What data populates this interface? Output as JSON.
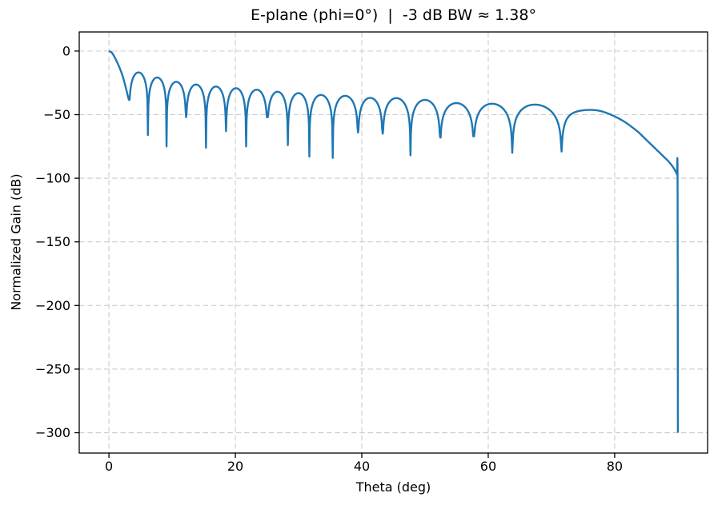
{
  "title": "E-plane (phi=0°)  |  -3 dB BW ≈ 1.38°",
  "axes": {
    "xlabel": "Theta (deg)",
    "ylabel": "Normalized Gain (dB)",
    "xlim": [
      -4.7,
      94.7
    ],
    "ylim": [
      -316,
      15
    ],
    "xticks": {
      "values": [
        0,
        20,
        40,
        60,
        80
      ],
      "labels": [
        "0",
        "20",
        "40",
        "60",
        "80"
      ]
    },
    "yticks": {
      "values": [
        0,
        -50,
        -100,
        -150,
        -200,
        -250,
        -300
      ],
      "labels": [
        "0",
        "−50",
        "−100",
        "−150",
        "−200",
        "−250",
        "−300"
      ]
    },
    "grid": {
      "on": true,
      "style": "dashed",
      "color": "#cbcbcb"
    },
    "spine_color": "#000000",
    "tick_color": "#000000"
  },
  "chart_data": {
    "type": "line",
    "series_name": "E-plane normalized gain",
    "line_color": "#1f77b4",
    "line_width": 2.4,
    "x_unit": "deg",
    "y_unit": "dB",
    "hpbw_deg": 1.38,
    "floor_db": -300,
    "endfire_theta_deg": 90,
    "main_lobe": {
      "peak_theta_deg": 0,
      "peak_db": 0,
      "profile": [
        [
          0,
          0
        ],
        [
          0.4,
          -1.0
        ],
        [
          0.69,
          -3.0
        ],
        [
          1.0,
          -5.8
        ],
        [
          1.35,
          -9.4
        ],
        [
          1.7,
          -13.4
        ],
        [
          2.05,
          -17.9
        ],
        [
          2.4,
          -23.7
        ],
        [
          2.7,
          -29.5
        ],
        [
          2.95,
          -34.5
        ],
        [
          3.1,
          -37.5
        ],
        [
          3.2,
          -38.5
        ]
      ]
    },
    "nulls_deg": [
      3.2,
      6.16,
      9.11,
      12.2,
      15.35,
      18.52,
      21.7,
      25.06,
      28.3,
      31.7,
      35.4,
      39.4,
      43.3,
      47.7,
      52.4,
      57.7,
      63.8,
      71.6
    ],
    "null_depths_db": [
      -38,
      -66,
      -75,
      -52,
      -76,
      -63,
      -75,
      -52,
      -74,
      -83,
      -84,
      -64,
      -65,
      -82,
      -68,
      -67,
      -80,
      -79
    ],
    "sidelobe_peaks_db": [
      -16.8,
      -20.8,
      -24.2,
      -26.3,
      -27.9,
      -29.2,
      -30.4,
      -32.0,
      -33.1,
      -34.5,
      -35.2,
      -36.8,
      -37.0,
      -38.4,
      -40.9,
      -41.4,
      -42.1
    ],
    "endfire_tail": [
      [
        71.6,
        -79
      ],
      [
        71.8,
        -65
      ],
      [
        72.2,
        -56
      ],
      [
        72.8,
        -51
      ],
      [
        73.6,
        -48.3
      ],
      [
        74.6,
        -46.9
      ],
      [
        75.7,
        -46.3
      ],
      [
        76.8,
        -46.4
      ],
      [
        77.8,
        -47.2
      ],
      [
        78.8,
        -48.8
      ],
      [
        79.8,
        -50.9
      ],
      [
        80.8,
        -53.4
      ],
      [
        81.8,
        -56.4
      ],
      [
        82.8,
        -60.0
      ],
      [
        83.8,
        -64.0
      ],
      [
        84.8,
        -68.8
      ],
      [
        85.8,
        -73.6
      ],
      [
        86.8,
        -78.4
      ],
      [
        87.8,
        -83.2
      ],
      [
        88.6,
        -87.2
      ],
      [
        89.2,
        -91.0
      ],
      [
        89.6,
        -94.2
      ],
      [
        89.85,
        -97.0
      ],
      [
        89.95,
        -99.5
      ],
      [
        90,
        -300
      ]
    ]
  }
}
